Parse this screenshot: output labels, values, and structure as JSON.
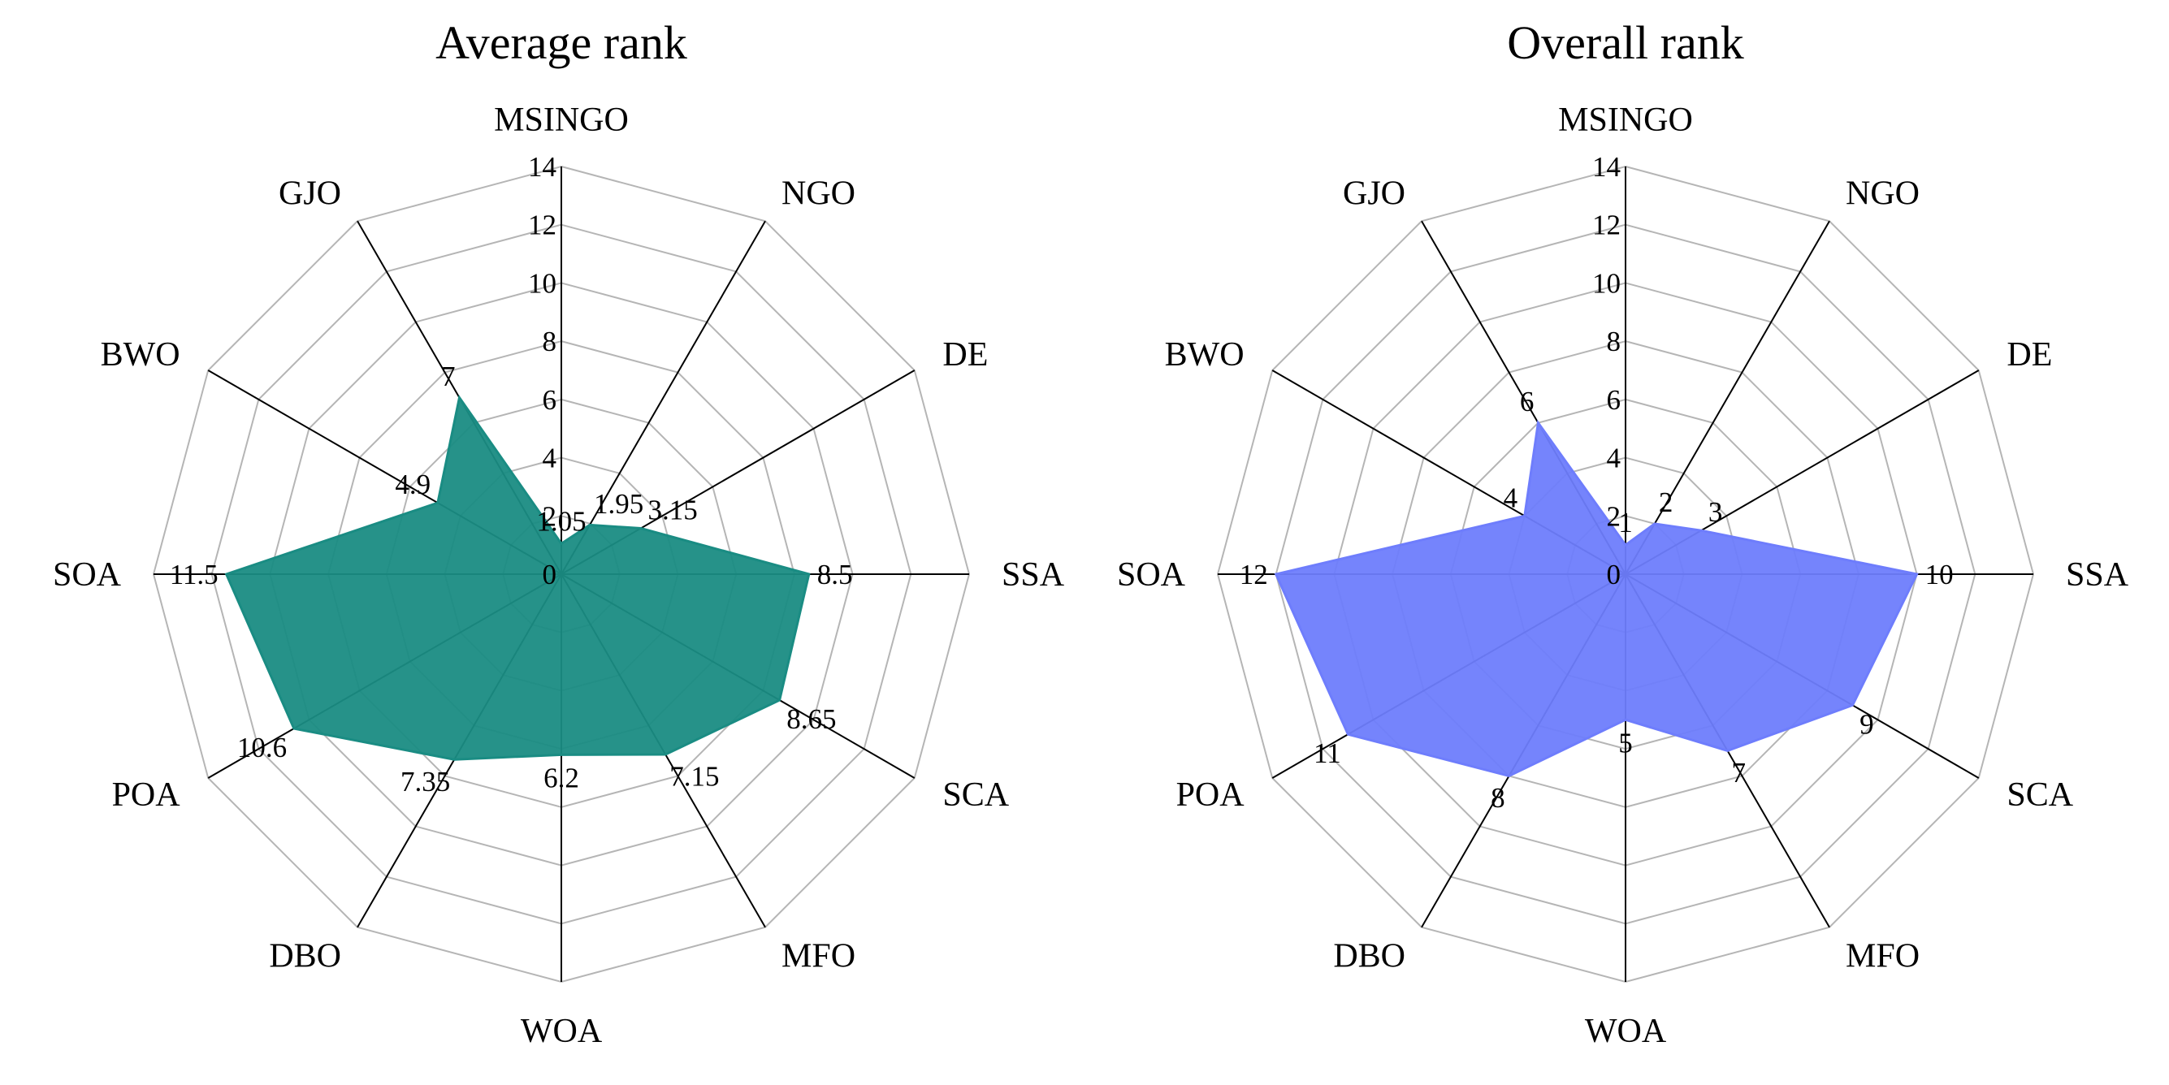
{
  "chart_data": [
    {
      "type": "radar",
      "title": "Average rank",
      "categories": [
        "MSINGO",
        "NGO",
        "DE",
        "SSA",
        "SCA",
        "MFO",
        "WOA",
        "DBO",
        "POA",
        "SOA",
        "BWO",
        "GJO"
      ],
      "values": [
        1.05,
        1.95,
        3.15,
        8.5,
        8.65,
        7.15,
        6.2,
        7.35,
        10.6,
        11.5,
        4.9,
        7
      ],
      "value_labels": [
        "1.05",
        "1.95",
        "3.15",
        "8.5",
        "8.65",
        "7.15",
        "6.2",
        "7.35",
        "10.6",
        "11.5",
        "4.9",
        "7"
      ],
      "r_range": [
        0,
        14
      ],
      "r_ticks": [
        "0",
        "2",
        "4",
        "6",
        "8",
        "10",
        "12",
        "14"
      ],
      "fill_color": "#1a8c83"
    },
    {
      "type": "radar",
      "title": "Overall rank",
      "categories": [
        "MSINGO",
        "NGO",
        "DE",
        "SSA",
        "SCA",
        "MFO",
        "WOA",
        "DBO",
        "POA",
        "SOA",
        "BWO",
        "GJO"
      ],
      "values": [
        1,
        2,
        3,
        10,
        9,
        7,
        5,
        8,
        11,
        12,
        4,
        6
      ],
      "value_labels": [
        "1",
        "2",
        "3",
        "10",
        "9",
        "7",
        "5",
        "8",
        "11",
        "12",
        "4",
        "6"
      ],
      "r_range": [
        0,
        14
      ],
      "r_ticks": [
        "0",
        "2",
        "4",
        "6",
        "8",
        "10",
        "12",
        "14"
      ],
      "fill_color": "#6e7dfc"
    }
  ]
}
